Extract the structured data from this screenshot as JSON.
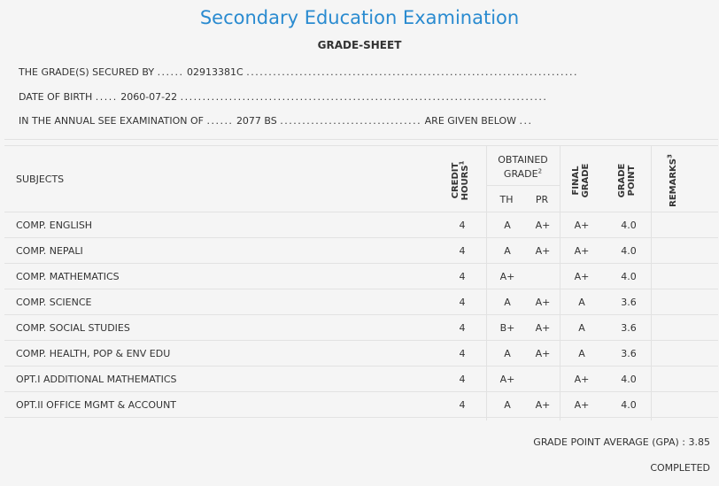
{
  "header": {
    "title": "Secondary Education Examination",
    "subtitle": "GRADE-SHEET"
  },
  "info": {
    "line1_label": "THE GRADE(S) SECURED BY",
    "line1_value": "02913381C",
    "line2_label": "DATE OF BIRTH",
    "line2_value": "2060-07-22",
    "line3_label": "IN THE ANNUAL SEE EXAMINATION OF",
    "line3_value": "2077 BS",
    "line3_tail": "ARE GIVEN BELOW"
  },
  "table": {
    "headers": {
      "subjects": "SUBJECTS",
      "credit_hours_1": "CREDIT",
      "credit_hours_2": "HOURS",
      "credit_hours_sup": "1",
      "obtained_grade_1": "OBTAINED",
      "obtained_grade_2": "GRADE",
      "obtained_grade_sup": "2",
      "th": "TH",
      "pr": "PR",
      "final_grade_1": "FINAL",
      "final_grade_2": "GRADE",
      "grade_point_1": "GRADE",
      "grade_point_2": "POINT",
      "remarks": "REMARKS",
      "remarks_sup": "3"
    },
    "rows": [
      {
        "subject": "COMP. ENGLISH",
        "credit": "4",
        "th": "A",
        "pr": "A+",
        "final": "A+",
        "gp": "4.0"
      },
      {
        "subject": "COMP. NEPALI",
        "credit": "4",
        "th": "A",
        "pr": "A+",
        "final": "A+",
        "gp": "4.0"
      },
      {
        "subject": "COMP. MATHEMATICS",
        "credit": "4",
        "th": "A+",
        "pr": "",
        "final": "A+",
        "gp": "4.0"
      },
      {
        "subject": "COMP. SCIENCE",
        "credit": "4",
        "th": "A",
        "pr": "A+",
        "final": "A",
        "gp": "3.6"
      },
      {
        "subject": "COMP. SOCIAL STUDIES",
        "credit": "4",
        "th": "B+",
        "pr": "A+",
        "final": "A",
        "gp": "3.6"
      },
      {
        "subject": "COMP. HEALTH, POP & ENV EDU",
        "credit": "4",
        "th": "A",
        "pr": "A+",
        "final": "A",
        "gp": "3.6"
      },
      {
        "subject": "OPT.I ADDITIONAL MATHEMATICS",
        "credit": "4",
        "th": "A+",
        "pr": "",
        "final": "A+",
        "gp": "4.0"
      },
      {
        "subject": "OPT.II OFFICE MGMT & ACCOUNT",
        "credit": "4",
        "th": "A",
        "pr": "A+",
        "final": "A+",
        "gp": "4.0"
      }
    ]
  },
  "footer": {
    "gpa_label": "GRADE POINT AVERAGE (GPA) :",
    "gpa_value": "3.85",
    "status": "COMPLETED"
  }
}
